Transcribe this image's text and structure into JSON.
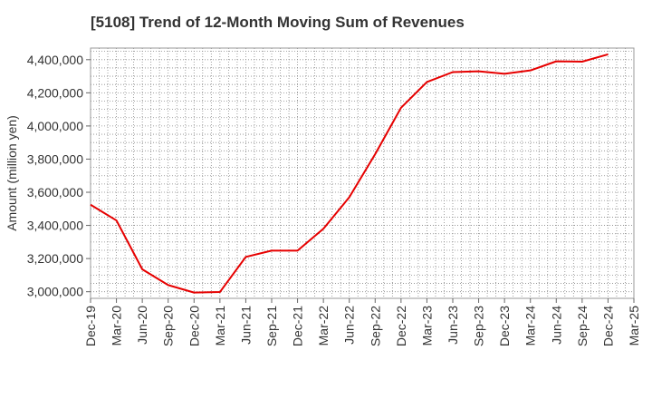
{
  "chart_data": {
    "type": "line",
    "title": "[5108]  Trend of 12-Month Moving Sum of Revenues",
    "xlabel": "",
    "ylabel": "Amount (million yen)",
    "ylim": [
      2960000,
      4470000
    ],
    "grid": true,
    "y_ticks": [
      3000000,
      3200000,
      3400000,
      3600000,
      3800000,
      4000000,
      4200000,
      4400000
    ],
    "y_tick_labels": [
      "3,000,000",
      "3,200,000",
      "3,400,000",
      "3,600,000",
      "3,800,000",
      "4,000,000",
      "4,200,000",
      "4,400,000"
    ],
    "categories": [
      "Dec-19",
      "Mar-20",
      "Jun-20",
      "Sep-20",
      "Dec-20",
      "Mar-21",
      "Jun-21",
      "Sep-21",
      "Dec-21",
      "Mar-22",
      "Jun-22",
      "Sep-22",
      "Dec-22",
      "Mar-23",
      "Jun-23",
      "Sep-23",
      "Dec-23",
      "Mar-24",
      "Jun-24",
      "Sep-24",
      "Dec-24",
      "Mar-25"
    ],
    "series": [
      {
        "color": "#e60000",
        "values": [
          3525000,
          3430000,
          3135000,
          3040000,
          2995000,
          2998000,
          3210000,
          3248000,
          3248000,
          3380000,
          3570000,
          3830000,
          4110000,
          4265000,
          4325000,
          4330000,
          4315000,
          4335000,
          4390000,
          4388000,
          4432000,
          null
        ]
      }
    ]
  }
}
